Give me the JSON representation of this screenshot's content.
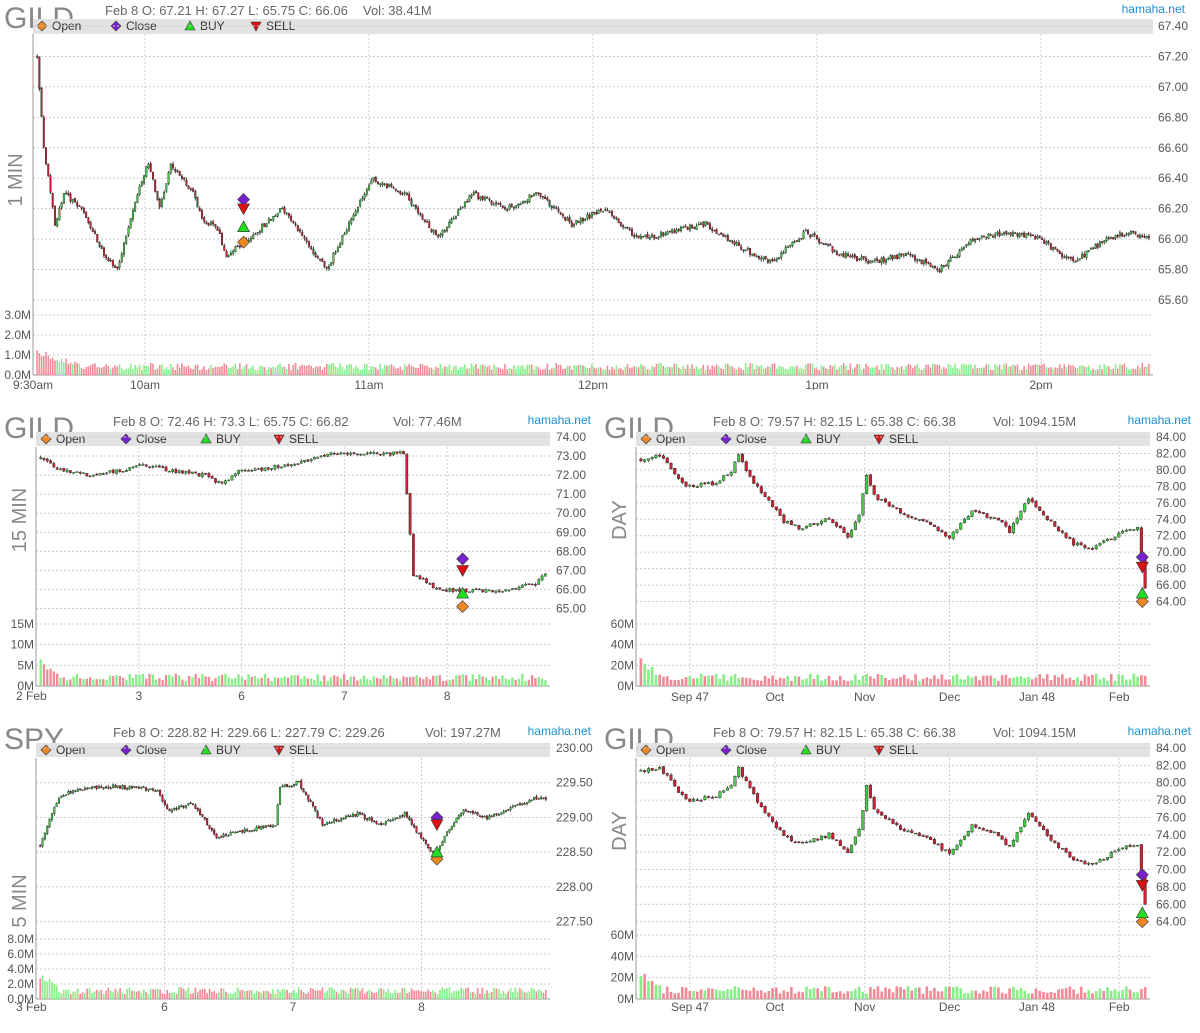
{
  "colors": {
    "up": "#44cc44",
    "down": "#cc2233",
    "vol_up": "#88ee88",
    "vol_down": "#f08a96",
    "grid": "#cccccc",
    "legend_bg": "#e2e2e2",
    "axis_text": "#555555",
    "brand": "#1a8fd0",
    "open_marker": "#ee8822",
    "close_marker": "#7722cc",
    "buy_marker": "#22dd22",
    "sell_marker": "#dd1111"
  },
  "legend": {
    "open": "Open",
    "close": "Close",
    "buy": "BUY",
    "sell": "SELL"
  },
  "charts": [
    {
      "id": "gild-1min",
      "symbol": "GILD",
      "interval": "1 MIN",
      "brand": "hamaha.net",
      "ohlc_text": "Feb 8 O: 67.21 H: 67.27 L: 65.75 C: 66.06",
      "vol_text": "Vol: 38.41M",
      "price_ticks": [
        "67.40",
        "67.20",
        "67.00",
        "66.80",
        "66.60",
        "66.40",
        "66.20",
        "66.00",
        "65.80",
        "65.60"
      ],
      "vol_ticks": [
        "3.0M",
        "2.0M",
        "1.0M",
        "0.0M"
      ],
      "x_ticks": [
        "9:30am",
        "10am",
        "11am",
        "12pm",
        "1pm",
        "2pm"
      ]
    },
    {
      "id": "gild-15min",
      "symbol": "GILD",
      "interval": "15 MIN",
      "brand": "hamaha.net",
      "ohlc_text": "Feb 8 O: 72.46 H: 73.3 L: 65.75 C: 66.82",
      "vol_text": "Vol: 77.46M",
      "price_ticks": [
        "74.00",
        "73.00",
        "72.00",
        "71.00",
        "70.00",
        "69.00",
        "68.00",
        "67.00",
        "66.00",
        "65.00"
      ],
      "vol_ticks": [
        "15M",
        "10M",
        "5M",
        "0M"
      ],
      "x_ticks": [
        "2 Feb",
        "3",
        "6",
        "7",
        "8"
      ]
    },
    {
      "id": "gild-day-1",
      "symbol": "GILD",
      "interval": "DAY",
      "brand": "hamaha.net",
      "ohlc_text": "Feb 8 O: 79.57 H: 82.15 L: 65.38 C: 66.38",
      "vol_text": "Vol: 1094.15M",
      "price_ticks": [
        "84.00",
        "82.00",
        "80.00",
        "78.00",
        "76.00",
        "74.00",
        "72.00",
        "70.00",
        "68.00",
        "66.00",
        "64.00"
      ],
      "vol_ticks": [
        "60M",
        "40M",
        "20M",
        "0M"
      ],
      "x_ticks": [
        "Sep 47",
        "Oct",
        "Nov",
        "Dec",
        "Jan 48",
        "Feb"
      ]
    },
    {
      "id": "spy-5min",
      "symbol": "SPY",
      "interval": "5 MIN",
      "brand": "hamaha.net",
      "ohlc_text": "Feb 8 O: 228.82 H: 229.66 L: 227.79 C: 229.26",
      "vol_text": "Vol: 197.27M",
      "price_ticks": [
        "230.00",
        "229.50",
        "229.00",
        "228.50",
        "228.00",
        "227.50"
      ],
      "vol_ticks": [
        "8.0M",
        "6.0M",
        "4.0M",
        "2.0M",
        "0.0M"
      ],
      "x_ticks": [
        "3 Feb",
        "6",
        "7",
        "8"
      ]
    },
    {
      "id": "gild-day-2",
      "symbol": "GILD",
      "interval": "DAY",
      "brand": "hamaha.net",
      "ohlc_text": "Feb 8 O: 79.57 H: 82.15 L: 65.38 C: 66.38",
      "vol_text": "Vol: 1094.15M",
      "price_ticks": [
        "84.00",
        "82.00",
        "80.00",
        "78.00",
        "76.00",
        "74.00",
        "72.00",
        "70.00",
        "68.00",
        "66.00",
        "64.00"
      ],
      "vol_ticks": [
        "60M",
        "40M",
        "20M",
        "0M"
      ],
      "x_ticks": [
        "Sep 47",
        "Oct",
        "Nov",
        "Dec",
        "Jan 48",
        "Feb"
      ]
    }
  ],
  "chart_data": [
    {
      "type": "candlestick",
      "title": "GILD 1 MIN",
      "x_labels": [
        "9:30am",
        "10am",
        "11am",
        "12pm",
        "1pm",
        "2pm"
      ],
      "ylim": [
        65.6,
        67.4
      ],
      "vol_lim": [
        0,
        3.0
      ],
      "vol_unit": "M",
      "close_waypoints": [
        [
          0,
          67.2
        ],
        [
          3,
          66.6
        ],
        [
          8,
          66.1
        ],
        [
          12,
          66.3
        ],
        [
          20,
          66.2
        ],
        [
          30,
          65.9
        ],
        [
          36,
          65.8
        ],
        [
          45,
          66.3
        ],
        [
          50,
          66.5
        ],
        [
          55,
          66.2
        ],
        [
          60,
          66.5
        ],
        [
          65,
          66.4
        ],
        [
          70,
          66.3
        ],
        [
          75,
          66.1
        ],
        [
          80,
          66.1
        ],
        [
          85,
          65.9
        ],
        [
          95,
          66.0
        ],
        [
          110,
          66.2
        ],
        [
          120,
          66.0
        ],
        [
          130,
          65.8
        ],
        [
          150,
          66.4
        ],
        [
          165,
          66.3
        ],
        [
          180,
          66.0
        ],
        [
          195,
          66.3
        ],
        [
          210,
          66.2
        ],
        [
          225,
          66.3
        ],
        [
          240,
          66.1
        ],
        [
          255,
          66.2
        ],
        [
          270,
          66.0
        ],
        [
          285,
          66.05
        ],
        [
          300,
          66.1
        ],
        [
          315,
          65.95
        ],
        [
          330,
          65.85
        ],
        [
          345,
          66.05
        ],
        [
          360,
          65.9
        ],
        [
          375,
          65.85
        ],
        [
          390,
          65.9
        ],
        [
          405,
          65.8
        ],
        [
          420,
          66.0
        ],
        [
          435,
          66.05
        ],
        [
          450,
          66.0
        ],
        [
          465,
          65.85
        ],
        [
          480,
          66.0
        ],
        [
          490,
          66.05
        ],
        [
          500,
          66.0
        ]
      ],
      "markers": [
        {
          "type": "Open",
          "price": 65.98
        },
        {
          "type": "Close",
          "price": 66.26
        },
        {
          "type": "BUY",
          "price": 66.08
        },
        {
          "type": "SELL",
          "price": 66.2
        }
      ]
    },
    {
      "type": "candlestick",
      "title": "GILD 15 MIN",
      "x_labels": [
        "2 Feb",
        "3",
        "6",
        "7",
        "8"
      ],
      "ylim": [
        64.5,
        74.0
      ],
      "vol_lim": [
        0,
        15
      ],
      "vol_unit": "M",
      "close_waypoints": [
        [
          0,
          72.9
        ],
        [
          5,
          72.3
        ],
        [
          15,
          72.0
        ],
        [
          27,
          72.3
        ],
        [
          30,
          72.6
        ],
        [
          40,
          72.2
        ],
        [
          50,
          72.0
        ],
        [
          55,
          71.5
        ],
        [
          60,
          72.2
        ],
        [
          75,
          72.5
        ],
        [
          84,
          72.9
        ],
        [
          90,
          73.2
        ],
        [
          105,
          73.1
        ],
        [
          110,
          73.2
        ],
        [
          113,
          66.8
        ],
        [
          120,
          66.0
        ],
        [
          140,
          65.9
        ],
        [
          150,
          66.3
        ],
        [
          153,
          66.8
        ]
      ],
      "markers": [
        {
          "type": "Open",
          "price": 65.1
        },
        {
          "type": "Close",
          "price": 67.6
        },
        {
          "type": "BUY",
          "price": 65.8
        },
        {
          "type": "SELL",
          "price": 67.0
        }
      ]
    },
    {
      "type": "candlestick",
      "title": "GILD DAY",
      "x_labels": [
        "Sep 47",
        "Oct",
        "Nov",
        "Dec",
        "Jan 48",
        "Feb"
      ],
      "ylim": [
        62,
        84
      ],
      "vol_lim": [
        0,
        60
      ],
      "vol_unit": "M",
      "close_waypoints": [
        [
          0,
          81.3
        ],
        [
          5,
          81.8
        ],
        [
          12,
          77.9
        ],
        [
          20,
          78.4
        ],
        [
          24,
          79.8
        ],
        [
          26,
          81.7
        ],
        [
          30,
          78.5
        ],
        [
          38,
          73.8
        ],
        [
          42,
          72.9
        ],
        [
          50,
          74.0
        ],
        [
          55,
          72.0
        ],
        [
          58,
          74.5
        ],
        [
          60,
          79.5
        ],
        [
          62,
          76.8
        ],
        [
          70,
          74.5
        ],
        [
          75,
          74.0
        ],
        [
          82,
          71.8
        ],
        [
          88,
          75.0
        ],
        [
          95,
          74.0
        ],
        [
          98,
          72.5
        ],
        [
          103,
          76.5
        ],
        [
          108,
          74.0
        ],
        [
          115,
          71.0
        ],
        [
          120,
          70.6
        ],
        [
          128,
          72.5
        ],
        [
          132,
          73.0
        ],
        [
          134,
          65.8
        ]
      ],
      "markers": [
        {
          "type": "Open",
          "price": 64.0
        },
        {
          "type": "Close",
          "price": 69.4
        },
        {
          "type": "BUY",
          "price": 65.0
        },
        {
          "type": "SELL",
          "price": 68.2
        }
      ]
    },
    {
      "type": "candlestick",
      "title": "SPY 5 MIN",
      "x_labels": [
        "3 Feb",
        "6",
        "7",
        "8"
      ],
      "ylim": [
        227.25,
        230.0
      ],
      "vol_lim": [
        0,
        8
      ],
      "vol_unit": "M",
      "close_waypoints": [
        [
          0,
          228.6
        ],
        [
          8,
          229.3
        ],
        [
          15,
          229.4
        ],
        [
          30,
          229.45
        ],
        [
          50,
          229.4
        ],
        [
          54,
          229.1
        ],
        [
          65,
          229.2
        ],
        [
          75,
          228.7
        ],
        [
          85,
          228.8
        ],
        [
          100,
          228.9
        ],
        [
          102,
          229.45
        ],
        [
          110,
          229.5
        ],
        [
          120,
          228.9
        ],
        [
          135,
          229.05
        ],
        [
          145,
          228.9
        ],
        [
          155,
          229.05
        ],
        [
          162,
          228.7
        ],
        [
          168,
          228.45
        ],
        [
          173,
          228.8
        ],
        [
          180,
          229.1
        ],
        [
          190,
          229.0
        ],
        [
          205,
          229.2
        ],
        [
          212,
          229.3
        ],
        [
          215,
          229.26
        ]
      ],
      "markers": [
        {
          "type": "Open",
          "price": 228.4
        },
        {
          "type": "Close",
          "price": 229.0
        },
        {
          "type": "BUY",
          "price": 228.5
        },
        {
          "type": "SELL",
          "price": 228.9
        }
      ]
    },
    {
      "type": "candlestick",
      "title": "GILD DAY",
      "x_labels": [
        "Sep 47",
        "Oct",
        "Nov",
        "Dec",
        "Jan 48",
        "Feb"
      ],
      "ylim": [
        62,
        84
      ],
      "vol_lim": [
        0,
        60
      ],
      "vol_unit": "M",
      "close_waypoints": [
        [
          0,
          81.3
        ],
        [
          5,
          81.8
        ],
        [
          12,
          77.9
        ],
        [
          20,
          78.4
        ],
        [
          24,
          79.8
        ],
        [
          26,
          81.7
        ],
        [
          30,
          78.5
        ],
        [
          38,
          73.8
        ],
        [
          42,
          72.9
        ],
        [
          50,
          74.0
        ],
        [
          55,
          72.0
        ],
        [
          58,
          74.5
        ],
        [
          60,
          79.5
        ],
        [
          62,
          76.8
        ],
        [
          70,
          74.5
        ],
        [
          75,
          74.0
        ],
        [
          82,
          71.8
        ],
        [
          88,
          75.0
        ],
        [
          95,
          74.0
        ],
        [
          98,
          72.5
        ],
        [
          103,
          76.5
        ],
        [
          108,
          74.0
        ],
        [
          115,
          71.0
        ],
        [
          120,
          70.6
        ],
        [
          128,
          72.5
        ],
        [
          132,
          73.0
        ],
        [
          134,
          65.8
        ]
      ],
      "markers": [
        {
          "type": "Open",
          "price": 64.0
        },
        {
          "type": "Close",
          "price": 69.4
        },
        {
          "type": "BUY",
          "price": 65.0
        },
        {
          "type": "SELL",
          "price": 68.2
        }
      ]
    }
  ]
}
